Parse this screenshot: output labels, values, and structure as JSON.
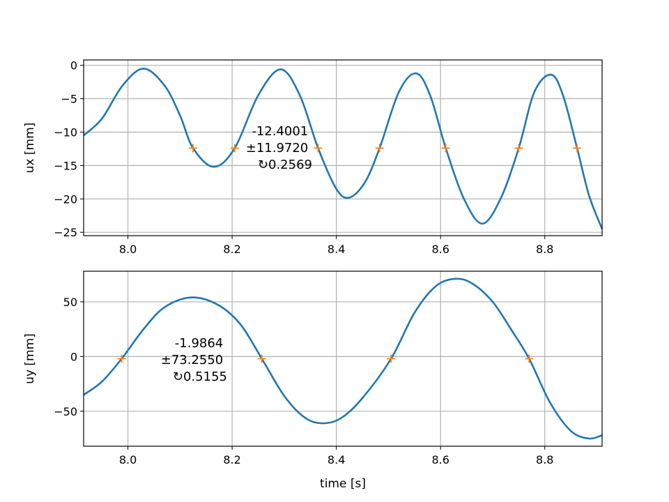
{
  "chart_data": [
    {
      "type": "line",
      "ylabel": "ux [mm]",
      "xlabel": "",
      "xlim": [
        7.915,
        8.91
      ],
      "ylim": [
        -25.5,
        0.8
      ],
      "xticks": [
        8.0,
        8.2,
        8.4,
        8.6,
        8.8
      ],
      "xtick_labels": [
        "8.0",
        "8.2",
        "8.4",
        "8.6",
        "8.8"
      ],
      "yticks": [
        0,
        -5,
        -10,
        -15,
        -20,
        -25
      ],
      "ytick_labels": [
        "0",
        "−5",
        "−10",
        "−15",
        "−20",
        "−25"
      ],
      "grid": true,
      "series": [
        {
          "color": "#1f77b4",
          "x": [
            7.915,
            7.95,
            7.99,
            8.03,
            8.07,
            8.1,
            8.125,
            8.165,
            8.205,
            8.25,
            8.293,
            8.33,
            8.365,
            8.4,
            8.425,
            8.455,
            8.483,
            8.52,
            8.553,
            8.58,
            8.61,
            8.645,
            8.68,
            8.715,
            8.75,
            8.78,
            8.812,
            8.835,
            8.862,
            8.885,
            8.91
          ],
          "y": [
            -10.5,
            -8.0,
            -3.0,
            -0.5,
            -3.0,
            -7.5,
            -12.4,
            -15.2,
            -12.4,
            -4.5,
            -0.6,
            -4.5,
            -12.4,
            -18.5,
            -19.8,
            -17.5,
            -12.4,
            -4.0,
            -1.2,
            -4.5,
            -12.4,
            -20.0,
            -23.7,
            -20.0,
            -12.4,
            -4.0,
            -1.4,
            -4.5,
            -12.4,
            -19.5,
            -24.5
          ]
        },
        {
          "color": "#ff7f0e",
          "marker": "+",
          "x": [
            8.125,
            8.205,
            8.365,
            8.483,
            8.61,
            8.75,
            8.862
          ],
          "y": [
            -12.4001,
            -12.4001,
            -12.4001,
            -12.4001,
            -12.4001,
            -12.4001,
            -12.4001
          ]
        }
      ],
      "annotation": [
        "-12.4001",
        "±11.9720",
        "↻0.2569"
      ]
    },
    {
      "type": "line",
      "ylabel": "uy [mm]",
      "xlabel": "time [s]",
      "xlim": [
        7.915,
        8.91
      ],
      "ylim": [
        -82,
        78
      ],
      "xticks": [
        8.0,
        8.2,
        8.4,
        8.6,
        8.8
      ],
      "xtick_labels": [
        "8.0",
        "8.2",
        "8.4",
        "8.6",
        "8.8"
      ],
      "yticks": [
        50,
        0,
        -50
      ],
      "ytick_labels": [
        "50",
        "0",
        "−50"
      ],
      "grid": true,
      "series": [
        {
          "color": "#1f77b4",
          "x": [
            7.915,
            7.95,
            7.988,
            8.03,
            8.07,
            8.12,
            8.17,
            8.215,
            8.257,
            8.3,
            8.34,
            8.375,
            8.41,
            8.45,
            8.505,
            8.55,
            8.59,
            8.627,
            8.66,
            8.7,
            8.735,
            8.77,
            8.81,
            8.85,
            8.885,
            8.91
          ],
          "y": [
            -35,
            -23,
            -2,
            25,
            45,
            54,
            48,
            30,
            -2,
            -36,
            -56,
            -61,
            -56,
            -38,
            -2,
            40,
            64,
            71,
            67,
            50,
            25,
            -2,
            -42,
            -68,
            -75,
            -72
          ]
        },
        {
          "color": "#ff7f0e",
          "marker": "+",
          "x": [
            7.988,
            8.257,
            8.505,
            8.77
          ],
          "y": [
            -1.9864,
            -1.9864,
            -1.9864,
            -1.9864
          ]
        }
      ],
      "annotation": [
        "-1.9864",
        "±73.2550",
        "↻0.5155"
      ]
    }
  ]
}
